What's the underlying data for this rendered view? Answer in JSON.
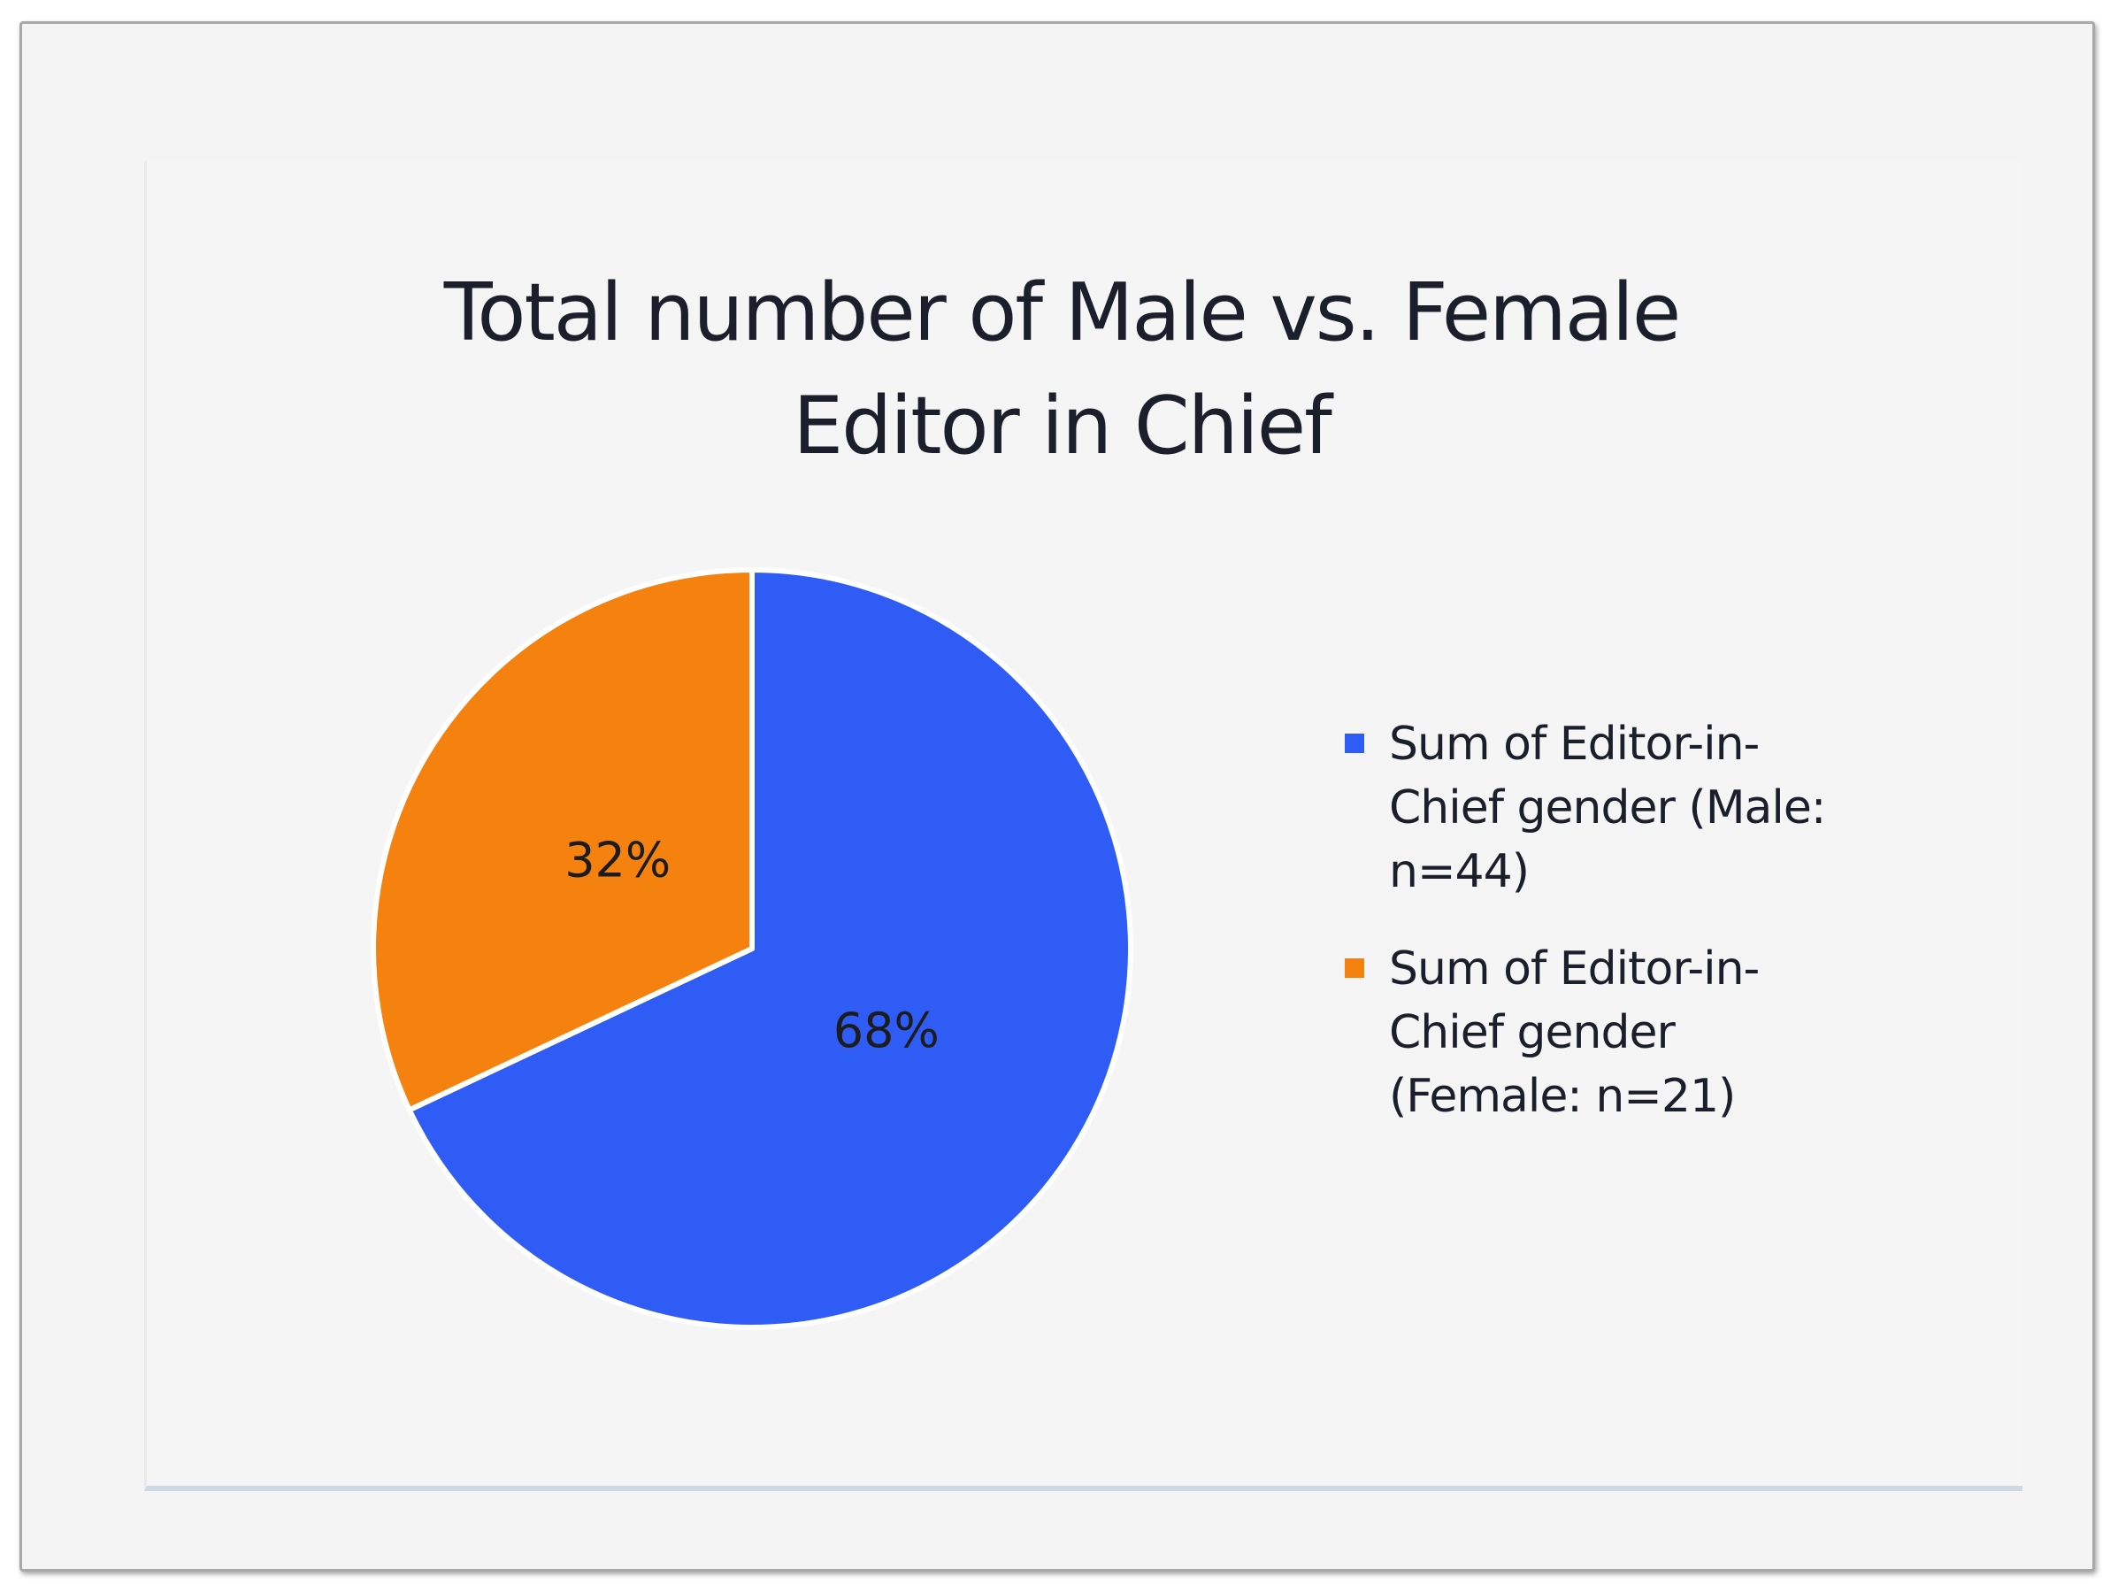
{
  "chart_data": {
    "type": "pie",
    "title": "Total number of Male vs. Female\nEditor in Chief",
    "categories": [
      "Sum of Editor-in-Chief gender (Male: n=44)",
      "Sum of Editor-in-Chief gender (Female: n=21)"
    ],
    "values": [
      68,
      32
    ],
    "value_labels": [
      "68%",
      "32%"
    ],
    "colors": [
      "#2f5cf5",
      "#f5820f"
    ],
    "legend_position": "right",
    "legend": [
      {
        "label": "Sum of Editor-in-\nChief gender (Male:\nn=44)",
        "color": "#2f5cf5"
      },
      {
        "label": "Sum of Editor-in-\nChief gender\n(Female: n=21)",
        "color": "#f5820f"
      }
    ]
  }
}
